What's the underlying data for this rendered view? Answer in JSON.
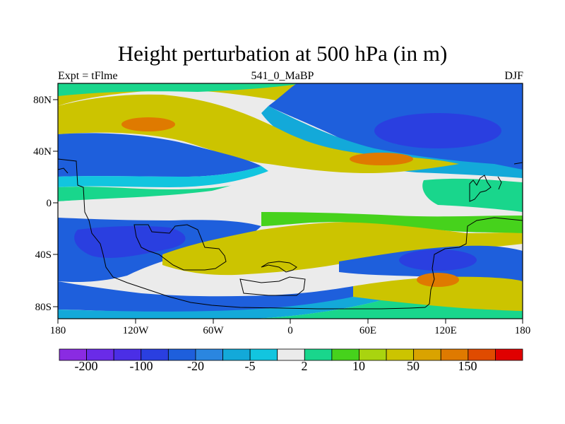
{
  "title": "Height perturbation at 500 hPa (in m)",
  "left_string": "Expt = tFlme",
  "center_string": "541_0_MaBP",
  "right_string": "DJF",
  "lon_ticks": [
    "180",
    "120W",
    "60W",
    "0",
    "60E",
    "120E",
    "180"
  ],
  "lat_ticks": [
    "80N",
    "40N",
    "0",
    "40S",
    "80S"
  ],
  "colorbar": {
    "colors": [
      "#8a2be2",
      "#6a2be8",
      "#4b2ee6",
      "#2a3fe0",
      "#1e5fdc",
      "#2a86e0",
      "#13a9d9",
      "#12c5df",
      "#ebebeb",
      "#19d68c",
      "#46d21c",
      "#a9d40f",
      "#ccc400",
      "#d9a300",
      "#df7a00",
      "#e04b00",
      "#e00000"
    ],
    "labels": [
      "-200",
      "-100",
      "-20",
      "-5",
      "2",
      "10",
      "50",
      "150"
    ]
  },
  "field_colors": {
    "ocean_blue": "#1e5fdc",
    "deep_blue": "#2a3fe0",
    "light_blue": "#13a9d9",
    "cyan": "#12c5df",
    "grey": "#ebebeb",
    "green": "#19d68c",
    "lime": "#46d21c",
    "olive": "#ccc400",
    "orange": "#df7a00"
  }
}
